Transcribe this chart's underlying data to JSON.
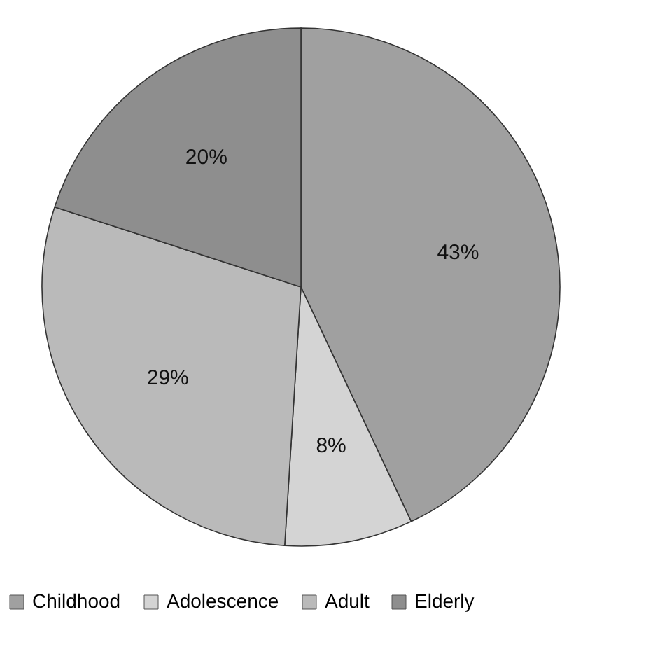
{
  "chart_data": {
    "type": "pie",
    "categories": [
      "Childhood",
      "Adolescence",
      "Adult",
      "Elderly"
    ],
    "values": [
      43,
      8,
      29,
      20
    ],
    "colors": [
      "#a0a0a0",
      "#d4d4d4",
      "#bababa",
      "#8e8e8e"
    ],
    "value_labels": [
      "43%",
      "8%",
      "29%",
      "20%"
    ],
    "legend": "bottom"
  }
}
